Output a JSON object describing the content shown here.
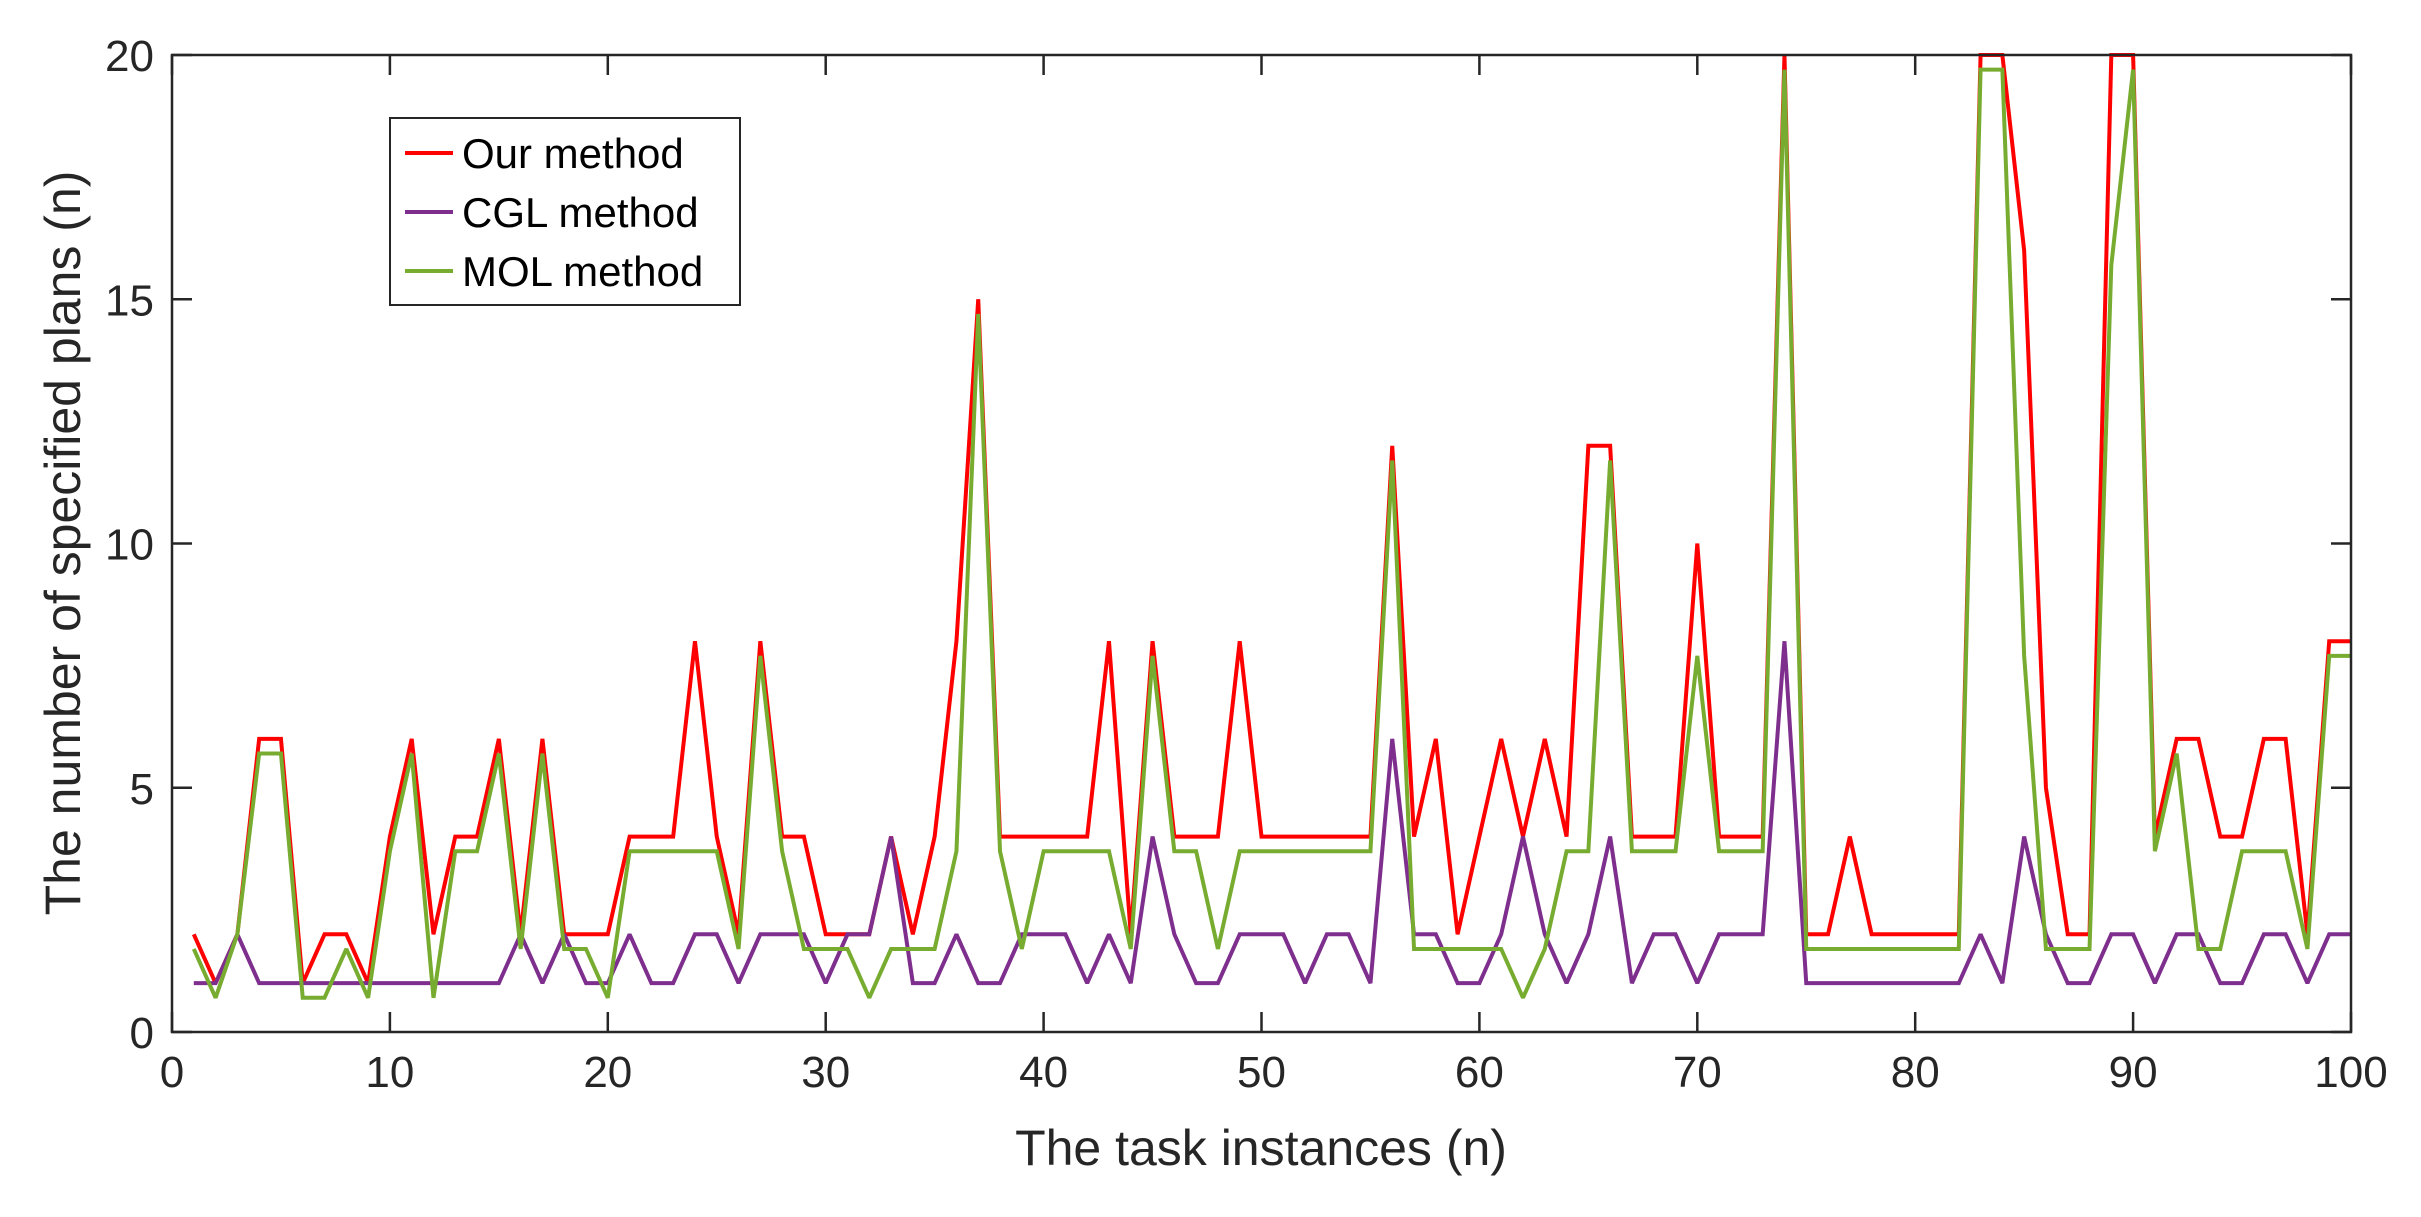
{
  "chart_data": {
    "type": "line",
    "title": "",
    "xlabel": "The task instances (n)",
    "ylabel": "The number of specified plans (n)",
    "xlim": [
      0,
      100
    ],
    "ylim": [
      0,
      20
    ],
    "xticks": [
      0,
      10,
      20,
      30,
      40,
      50,
      60,
      70,
      80,
      90,
      100
    ],
    "yticks": [
      0,
      5,
      10,
      15,
      20
    ],
    "grid": false,
    "legend_position": "upper-left",
    "x": [
      1,
      2,
      3,
      4,
      5,
      6,
      7,
      8,
      9,
      10,
      11,
      12,
      13,
      14,
      15,
      16,
      17,
      18,
      19,
      20,
      21,
      22,
      23,
      24,
      25,
      26,
      27,
      28,
      29,
      30,
      31,
      32,
      33,
      34,
      35,
      36,
      37,
      38,
      39,
      40,
      41,
      42,
      43,
      44,
      45,
      46,
      47,
      48,
      49,
      50,
      51,
      52,
      53,
      54,
      55,
      56,
      57,
      58,
      59,
      60,
      61,
      62,
      63,
      64,
      65,
      66,
      67,
      68,
      69,
      70,
      71,
      72,
      73,
      74,
      75,
      76,
      77,
      78,
      79,
      80,
      81,
      82,
      83,
      84,
      85,
      86,
      87,
      88,
      89,
      90,
      91,
      92,
      93,
      94,
      95,
      96,
      97,
      98,
      99,
      100
    ],
    "series": [
      {
        "name": "Our method",
        "color": "#ff0000",
        "values": [
          2,
          1,
          2,
          6,
          6,
          1,
          2,
          2,
          1,
          4,
          6,
          2,
          4,
          4,
          6,
          2,
          6,
          2,
          2,
          2,
          4,
          4,
          4,
          8,
          4,
          2,
          8,
          4,
          4,
          2,
          2,
          2,
          4,
          2,
          4,
          8,
          15,
          4,
          4,
          4,
          4,
          4,
          8,
          2,
          8,
          4,
          4,
          4,
          8,
          4,
          4,
          4,
          4,
          4,
          4,
          12,
          4,
          6,
          2,
          4,
          6,
          4,
          6,
          4,
          12,
          12,
          4,
          4,
          4,
          10,
          4,
          4,
          4,
          20,
          2,
          2,
          4,
          2,
          2,
          2,
          2,
          2,
          20,
          20,
          16,
          5,
          2,
          2,
          20,
          20,
          4,
          6,
          6,
          4,
          4,
          6,
          6,
          2,
          8,
          8
        ]
      },
      {
        "name": "CGL method",
        "color": "#7e2f8e",
        "values": [
          1,
          1,
          2,
          1,
          1,
          1,
          1,
          1,
          1,
          1,
          1,
          1,
          1,
          1,
          1,
          2,
          1,
          2,
          1,
          1,
          2,
          1,
          1,
          2,
          2,
          1,
          2,
          2,
          2,
          1,
          2,
          2,
          4,
          1,
          1,
          2,
          1,
          1,
          2,
          2,
          2,
          1,
          2,
          1,
          4,
          2,
          1,
          1,
          2,
          2,
          2,
          1,
          2,
          2,
          1,
          6,
          2,
          2,
          1,
          1,
          2,
          4,
          2,
          1,
          2,
          4,
          1,
          2,
          2,
          1,
          2,
          2,
          2,
          8,
          1,
          1,
          1,
          1,
          1,
          1,
          1,
          1,
          2,
          1,
          4,
          2,
          1,
          1,
          2,
          2,
          1,
          2,
          2,
          1,
          1,
          2,
          2,
          1,
          2,
          2
        ]
      },
      {
        "name": "MOL method",
        "color": "#77ac30",
        "values": [
          1.7,
          0.7,
          2,
          5.7,
          5.7,
          0.7,
          0.7,
          1.7,
          0.7,
          3.7,
          5.7,
          0.7,
          3.7,
          3.7,
          5.7,
          1.7,
          5.7,
          1.7,
          1.7,
          0.7,
          3.7,
          3.7,
          3.7,
          3.7,
          3.7,
          1.7,
          7.7,
          3.7,
          1.7,
          1.7,
          1.7,
          0.7,
          1.7,
          1.7,
          1.7,
          3.7,
          14.7,
          3.7,
          1.7,
          3.7,
          3.7,
          3.7,
          3.7,
          1.7,
          7.7,
          3.7,
          3.7,
          1.7,
          3.7,
          3.7,
          3.7,
          3.7,
          3.7,
          3.7,
          3.7,
          11.7,
          1.7,
          1.7,
          1.7,
          1.7,
          1.7,
          0.7,
          1.7,
          3.7,
          3.7,
          11.7,
          3.7,
          3.7,
          3.7,
          7.7,
          3.7,
          3.7,
          3.7,
          19.7,
          1.7,
          1.7,
          1.7,
          1.7,
          1.7,
          1.7,
          1.7,
          1.7,
          19.7,
          19.7,
          7.7,
          1.7,
          1.7,
          1.7,
          15.7,
          19.7,
          3.7,
          5.7,
          1.7,
          1.7,
          3.7,
          3.7,
          3.7,
          1.7,
          7.7,
          7.7
        ]
      }
    ]
  }
}
